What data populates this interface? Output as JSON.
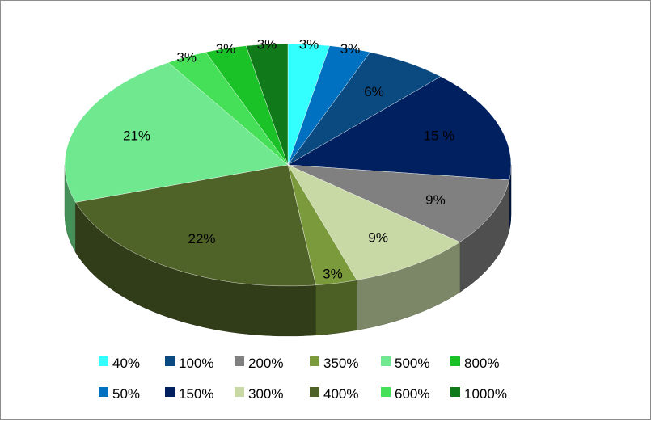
{
  "chart_data": {
    "type": "pie",
    "style": "3d",
    "categories": [
      "40%",
      "50%",
      "100%",
      "150%",
      "200%",
      "300%",
      "350%",
      "400%",
      "500%",
      "600%",
      "800%",
      "1000%"
    ],
    "values": [
      3,
      3,
      6,
      15,
      9,
      9,
      3,
      22,
      21,
      3,
      3,
      3
    ],
    "data_labels": [
      "3%",
      "3%",
      "6%",
      "15 %",
      "9%",
      "9%",
      "3%",
      "22%",
      "21%",
      "3%",
      "3%",
      "3%"
    ],
    "colors": [
      "#33ffff",
      "#0070c0",
      "#0b4a80",
      "#002060",
      "#808080",
      "#c8d9a6",
      "#7a9a3c",
      "#4f6228",
      "#6fe890",
      "#46e058",
      "#1ac228",
      "#107a1a"
    ],
    "legend": {
      "placement": "bottom",
      "rows": [
        [
          "40%",
          "100%",
          "200%",
          "350%",
          "500%",
          "800%"
        ],
        [
          "50%",
          "150%",
          "300%",
          "400%",
          "600%",
          "1000%"
        ]
      ]
    },
    "title": "",
    "grid": false
  }
}
